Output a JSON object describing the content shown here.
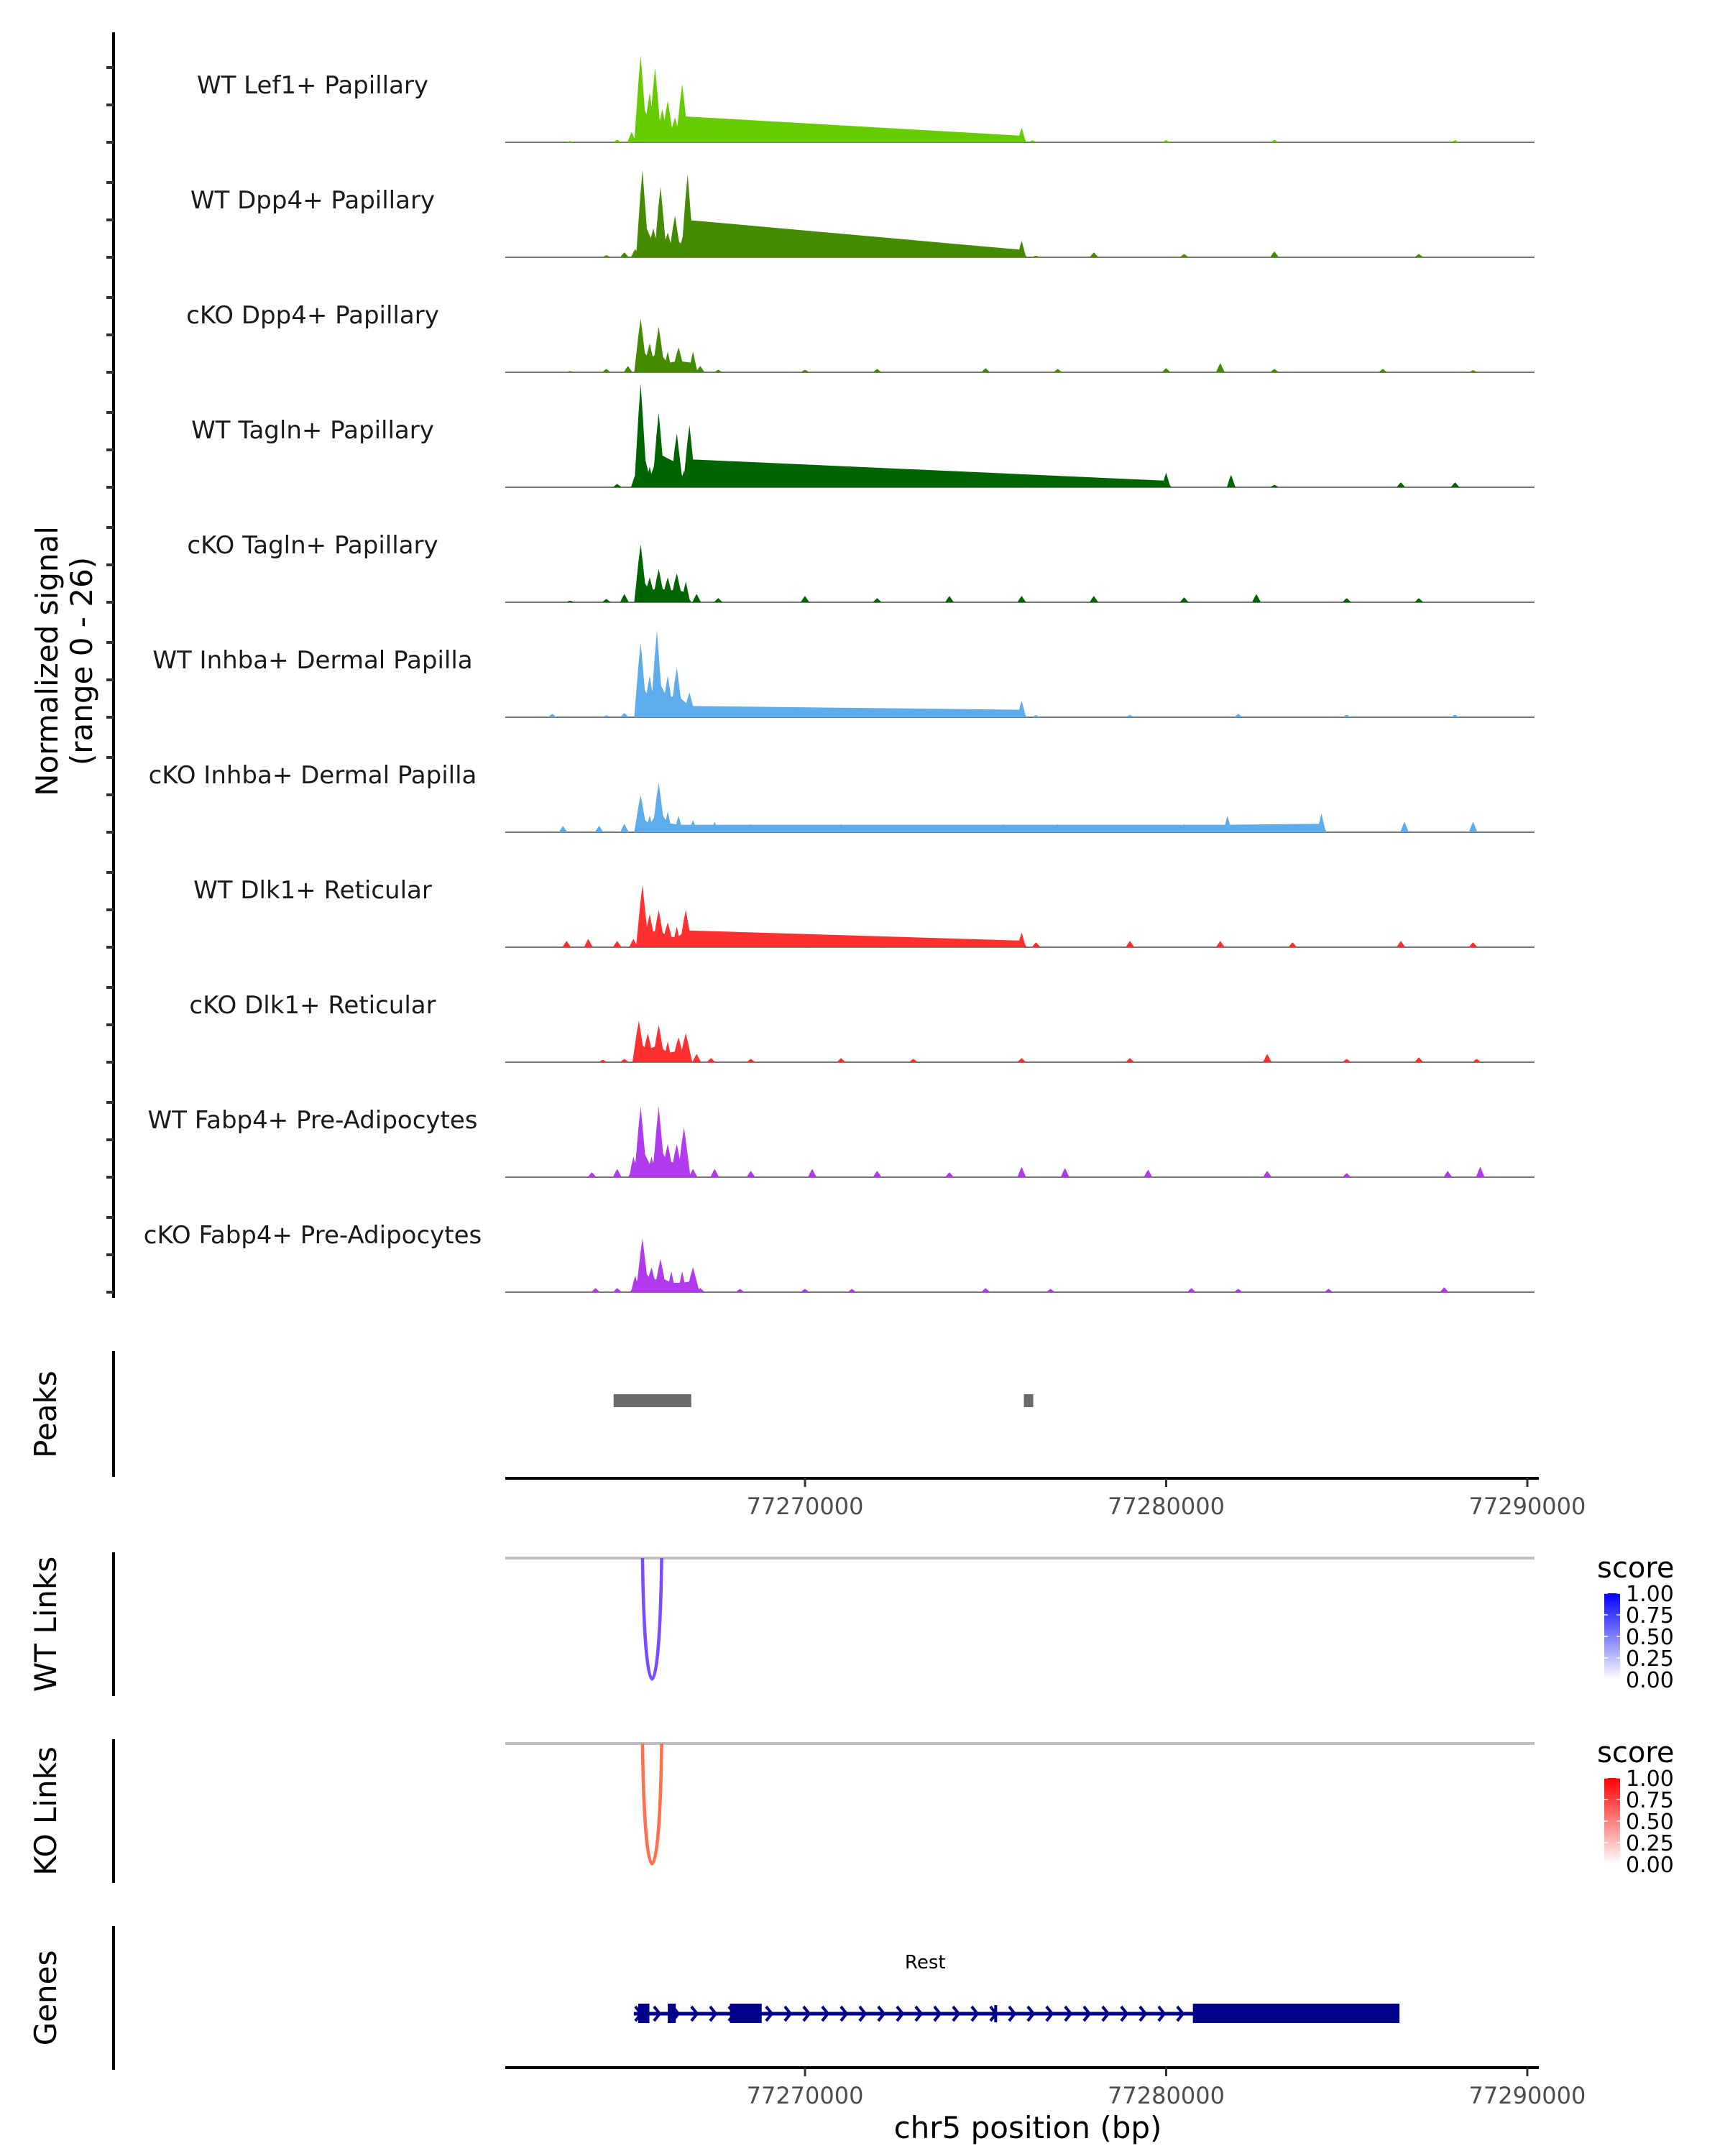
{
  "chart_data": {
    "type": "area",
    "title": "",
    "genomic_region": {
      "chrom": "chr5",
      "start": 77261700,
      "end": 77290200
    },
    "ylabel": "Normalized signal\n(range 0 - 26)",
    "ylabel_lines": [
      "Normalized signal",
      "(range 0 - 26)"
    ],
    "ylim": [
      0,
      26
    ],
    "xlabel": "chr5 position (bp)",
    "x_ticks": [
      77270000,
      77280000,
      77290000
    ],
    "x_tick_labels": [
      "77270000",
      "77280000",
      "77290000"
    ],
    "tracks": [
      {
        "name": "WT Lef1+ Papillary",
        "color": "#66CC00",
        "points": [
          [
            77263500,
            0.3
          ],
          [
            77264800,
            0.6
          ],
          [
            77265200,
            2.5
          ],
          [
            77265450,
            21
          ],
          [
            77265700,
            12
          ],
          [
            77265850,
            18
          ],
          [
            77266050,
            8
          ],
          [
            77266200,
            10
          ],
          [
            77266400,
            6
          ],
          [
            77266600,
            14
          ],
          [
            77266800,
            3
          ],
          [
            77267200,
            1.2
          ],
          [
            77267800,
            0.3
          ],
          [
            77270100,
            1.4
          ],
          [
            77271000,
            0.5
          ],
          [
            77273000,
            0.4
          ],
          [
            77275600,
            0.3
          ],
          [
            77276000,
            3.5
          ],
          [
            77276300,
            0.5
          ],
          [
            77280000,
            0.5
          ],
          [
            77283000,
            0.6
          ],
          [
            77288000,
            0.5
          ]
        ]
      },
      {
        "name": "WT Dpp4+ Papillary",
        "color": "#458B00",
        "points": [
          [
            77264500,
            0.5
          ],
          [
            77265000,
            1.2
          ],
          [
            77265300,
            2
          ],
          [
            77265500,
            21
          ],
          [
            77265800,
            7
          ],
          [
            77266000,
            17
          ],
          [
            77266200,
            6
          ],
          [
            77266400,
            10
          ],
          [
            77266650,
            6
          ],
          [
            77266750,
            20
          ],
          [
            77267000,
            3
          ],
          [
            77267400,
            2
          ],
          [
            77268000,
            1
          ],
          [
            77270100,
            1.5
          ],
          [
            77271500,
            0.6
          ],
          [
            77273500,
            0.8
          ],
          [
            77275000,
            0.6
          ],
          [
            77276000,
            4
          ],
          [
            77276400,
            0.4
          ],
          [
            77278000,
            1.2
          ],
          [
            77280500,
            0.8
          ],
          [
            77283000,
            1.4
          ],
          [
            77287000,
            0.8
          ]
        ]
      },
      {
        "name": "cKO Dpp4+ Papillary",
        "color": "#458B00",
        "points": [
          [
            77263500,
            0.3
          ],
          [
            77264500,
            0.8
          ],
          [
            77265100,
            1.5
          ],
          [
            77265450,
            13
          ],
          [
            77265700,
            7
          ],
          [
            77265950,
            11
          ],
          [
            77266200,
            5
          ],
          [
            77266500,
            6
          ],
          [
            77266900,
            5
          ],
          [
            77267100,
            1.5
          ],
          [
            77267600,
            0.6
          ],
          [
            77270000,
            0.6
          ],
          [
            77272000,
            0.8
          ],
          [
            77275000,
            1
          ],
          [
            77277000,
            0.8
          ],
          [
            77280000,
            1
          ],
          [
            77281500,
            2.2
          ],
          [
            77283000,
            0.8
          ],
          [
            77286000,
            0.8
          ],
          [
            77288500,
            0.5
          ]
        ]
      },
      {
        "name": "WT Tagln+ Papillary",
        "color": "#006400",
        "points": [
          [
            77264800,
            0.8
          ],
          [
            77265300,
            3
          ],
          [
            77265450,
            25
          ],
          [
            77265700,
            5
          ],
          [
            77265950,
            18
          ],
          [
            77266200,
            3
          ],
          [
            77266450,
            13
          ],
          [
            77266650,
            4
          ],
          [
            77266800,
            15
          ],
          [
            77267000,
            1
          ],
          [
            77268200,
            1.5
          ],
          [
            77270000,
            1.2
          ],
          [
            77273000,
            1.4
          ],
          [
            77276000,
            2
          ],
          [
            77278000,
            1.5
          ],
          [
            77280000,
            3.5
          ],
          [
            77281800,
            3
          ],
          [
            77283000,
            0.6
          ],
          [
            77286500,
            1.2
          ],
          [
            77288000,
            1.2
          ]
        ]
      },
      {
        "name": "cKO Tagln+ Papillary",
        "color": "#006400",
        "points": [
          [
            77263500,
            0.4
          ],
          [
            77264500,
            0.8
          ],
          [
            77265000,
            2
          ],
          [
            77265450,
            14
          ],
          [
            77265700,
            6
          ],
          [
            77265950,
            8
          ],
          [
            77266200,
            6
          ],
          [
            77266450,
            7
          ],
          [
            77266700,
            5
          ],
          [
            77267000,
            2
          ],
          [
            77267600,
            1
          ],
          [
            77270000,
            1.5
          ],
          [
            77272000,
            1
          ],
          [
            77274000,
            1.5
          ],
          [
            77276000,
            1.5
          ],
          [
            77278000,
            1.5
          ],
          [
            77280500,
            1.2
          ],
          [
            77282500,
            2
          ],
          [
            77285000,
            1
          ],
          [
            77287000,
            1
          ]
        ]
      },
      {
        "name": "WT Inhba+ Dermal Papilla",
        "color": "#5DADEC",
        "points": [
          [
            77263000,
            0.8
          ],
          [
            77264500,
            0.5
          ],
          [
            77265000,
            1
          ],
          [
            77265450,
            18
          ],
          [
            77265700,
            10
          ],
          [
            77265900,
            21
          ],
          [
            77266200,
            10
          ],
          [
            77266450,
            12
          ],
          [
            77266800,
            6
          ],
          [
            77267200,
            2.5
          ],
          [
            77267800,
            1
          ],
          [
            77270100,
            2.2
          ],
          [
            77271000,
            0.8
          ],
          [
            77273500,
            1.2
          ],
          [
            77275000,
            0.8
          ],
          [
            77276000,
            4
          ],
          [
            77276400,
            0.5
          ],
          [
            77279000,
            0.6
          ],
          [
            77282000,
            0.8
          ],
          [
            77285000,
            0.6
          ],
          [
            77288000,
            0.6
          ]
        ]
      },
      {
        "name": "cKO Inhba+ Dermal Papilla",
        "color": "#5DADEC",
        "points": [
          [
            77263300,
            1.5
          ],
          [
            77264300,
            1.5
          ],
          [
            77265000,
            2
          ],
          [
            77265450,
            9
          ],
          [
            77265700,
            4
          ],
          [
            77265950,
            12
          ],
          [
            77266200,
            5
          ],
          [
            77266500,
            4
          ],
          [
            77266900,
            3
          ],
          [
            77267500,
            2.5
          ],
          [
            77268500,
            2
          ],
          [
            77271000,
            2
          ],
          [
            77273000,
            1.8
          ],
          [
            77275500,
            2
          ],
          [
            77277000,
            2
          ],
          [
            77280500,
            2
          ],
          [
            77281700,
            4
          ],
          [
            77284300,
            4.5
          ],
          [
            77286600,
            2.5
          ],
          [
            77288500,
            2.5
          ]
        ]
      },
      {
        "name": "WT Dlk1+ Reticular",
        "color": "#FF3030",
        "points": [
          [
            77263400,
            1.5
          ],
          [
            77264000,
            2
          ],
          [
            77264800,
            1.5
          ],
          [
            77265250,
            2
          ],
          [
            77265500,
            15
          ],
          [
            77265700,
            8
          ],
          [
            77265950,
            9
          ],
          [
            77266200,
            6
          ],
          [
            77266450,
            5
          ],
          [
            77266700,
            9
          ],
          [
            77267000,
            3
          ],
          [
            77267600,
            1.5
          ],
          [
            77270100,
            2
          ],
          [
            77272000,
            1.5
          ],
          [
            77274000,
            1.2
          ],
          [
            77276000,
            3.5
          ],
          [
            77276400,
            1.2
          ],
          [
            77279000,
            1.5
          ],
          [
            77281500,
            1.5
          ],
          [
            77283500,
            1.2
          ],
          [
            77286500,
            1.5
          ],
          [
            77288500,
            1.2
          ]
        ]
      },
      {
        "name": "cKO Dlk1+ Reticular",
        "color": "#FF3030",
        "points": [
          [
            77264400,
            0.6
          ],
          [
            77265000,
            0.8
          ],
          [
            77265400,
            10
          ],
          [
            77265650,
            7
          ],
          [
            77265950,
            9
          ],
          [
            77266200,
            5
          ],
          [
            77266500,
            6
          ],
          [
            77266700,
            7
          ],
          [
            77267000,
            2
          ],
          [
            77267400,
            1
          ],
          [
            77268500,
            0.8
          ],
          [
            77271000,
            1
          ],
          [
            77273000,
            0.8
          ],
          [
            77276000,
            1
          ],
          [
            77279000,
            1
          ],
          [
            77282800,
            2
          ],
          [
            77285000,
            0.8
          ],
          [
            77287000,
            1.2
          ],
          [
            77288600,
            0.8
          ]
        ]
      },
      {
        "name": "WT Fabp4+ Pre-Adipocytes",
        "color": "#B23AEE",
        "points": [
          [
            77264100,
            1.2
          ],
          [
            77264800,
            2
          ],
          [
            77265250,
            5
          ],
          [
            77265450,
            17
          ],
          [
            77265750,
            5
          ],
          [
            77265950,
            17
          ],
          [
            77266200,
            8
          ],
          [
            77266450,
            8
          ],
          [
            77266650,
            12
          ],
          [
            77266900,
            2
          ],
          [
            77267500,
            2
          ],
          [
            77268500,
            1.5
          ],
          [
            77270200,
            2
          ],
          [
            77272000,
            1.5
          ],
          [
            77274000,
            1.2
          ],
          [
            77276000,
            2.5
          ],
          [
            77277200,
            2.2
          ],
          [
            77279500,
            1.8
          ],
          [
            77282800,
            1.5
          ],
          [
            77285000,
            1
          ],
          [
            77287800,
            1.5
          ],
          [
            77288700,
            2.5
          ]
        ]
      },
      {
        "name": "cKO Fabp4+ Pre-Adipocytes",
        "color": "#B23AEE",
        "points": [
          [
            77264200,
            1
          ],
          [
            77264800,
            1
          ],
          [
            77265300,
            4
          ],
          [
            77265500,
            13
          ],
          [
            77265750,
            6
          ],
          [
            77266000,
            8
          ],
          [
            77266300,
            5
          ],
          [
            77266600,
            5
          ],
          [
            77266900,
            6
          ],
          [
            77267100,
            1
          ],
          [
            77268200,
            0.8
          ],
          [
            77270000,
            0.8
          ],
          [
            77271300,
            0.8
          ],
          [
            77275000,
            1
          ],
          [
            77276800,
            0.8
          ],
          [
            77280700,
            1
          ],
          [
            77282000,
            0.8
          ],
          [
            77284500,
            0.8
          ],
          [
            77287700,
            1.2
          ]
        ]
      }
    ],
    "peaks": {
      "label": "Peaks",
      "color": "#6B6B6B",
      "regions": [
        [
          77264700,
          77266850
        ],
        [
          77276060,
          77276320
        ]
      ]
    },
    "links": [
      {
        "label": "WT Links",
        "color": "#7B4CFF",
        "legend": {
          "title": "score",
          "low_color": "#FFFFFF",
          "high_color": "#0000FF",
          "ticks": [
            "1.00",
            "0.75",
            "0.50",
            "0.25",
            "0.00"
          ]
        },
        "arcs": [
          {
            "start": 77265500,
            "end": 77266030,
            "score": 0.68
          }
        ]
      },
      {
        "label": "KO Links",
        "color": "#FF7050",
        "legend": {
          "title": "score",
          "low_color": "#FFFFFF",
          "high_color": "#FF0000",
          "ticks": [
            "1.00",
            "0.75",
            "0.50",
            "0.25",
            "0.00"
          ]
        },
        "arcs": [
          {
            "start": 77265500,
            "end": 77266030,
            "score": 0.68
          }
        ]
      }
    ],
    "genes": {
      "label": "Genes",
      "color": "#00008B",
      "items": [
        {
          "name": "Rest",
          "strand": "+",
          "start": 77265380,
          "end": 77284460,
          "exons": [
            [
              77265380,
              77265690
            ],
            [
              77266200,
              77266420
            ],
            [
              77267920,
              77268800
            ],
            [
              77275240,
              77275280
            ],
            [
              77280740,
              77286460
            ]
          ]
        }
      ]
    }
  }
}
